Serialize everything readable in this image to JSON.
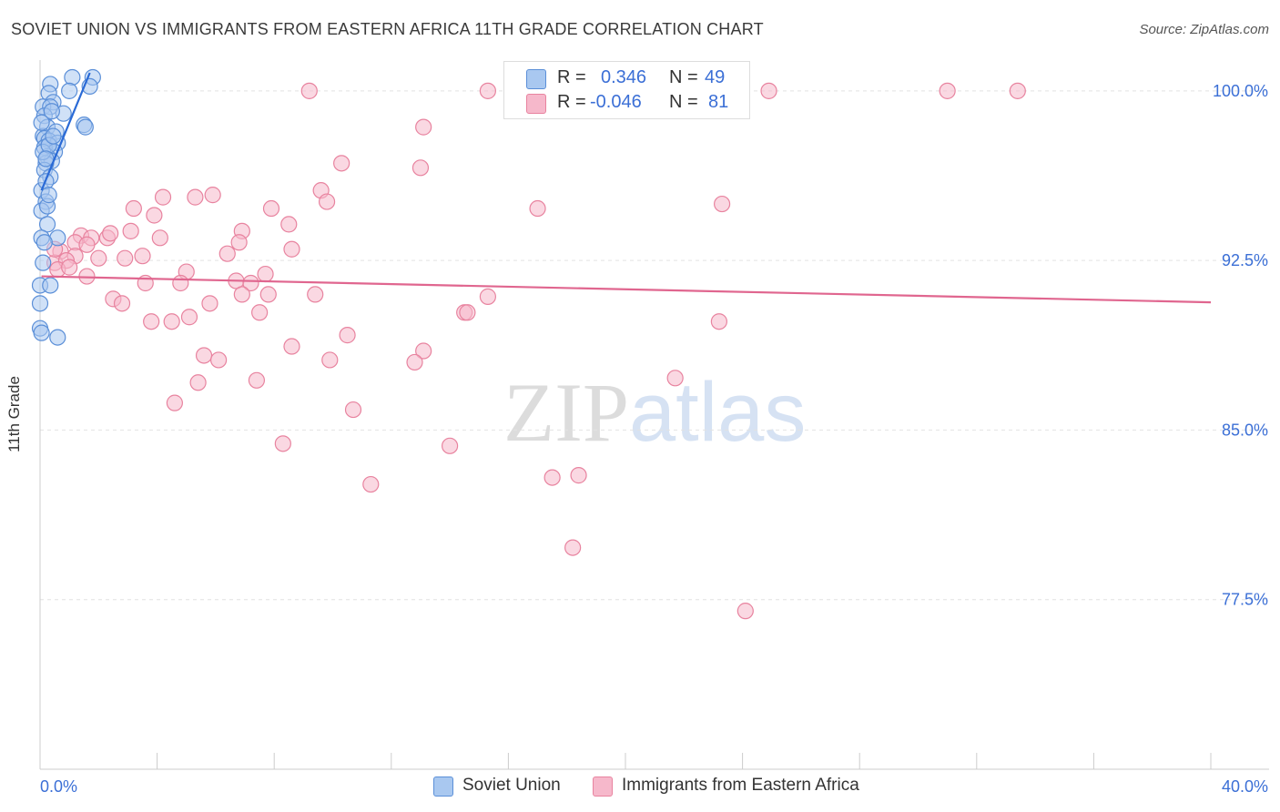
{
  "title": "SOVIET UNION VS IMMIGRANTS FROM EASTERN AFRICA 11TH GRADE CORRELATION CHART",
  "source": "Source: ZipAtlas.com",
  "watermark": {
    "zip": "ZIP",
    "atlas": "atlas"
  },
  "legend": {
    "rows": [
      {
        "r_label": "R = ",
        "r_value": "0.346",
        "n_label": "N = ",
        "n_value": "49"
      },
      {
        "r_label": "R = ",
        "r_value": "-0.046",
        "n_label": "N = ",
        "n_value": "81"
      }
    ]
  },
  "bottom_legend": [
    "Soviet Union",
    "Immigrants from Eastern Africa"
  ],
  "colors": {
    "blue_fill": "#a9c8f0",
    "blue_stroke": "#5b8fd8",
    "blue_line": "#2a6ad6",
    "pink_fill": "#f6b8cb",
    "pink_stroke": "#e8839f",
    "pink_line": "#e0668f",
    "tick_label": "#3b6fd6",
    "grid": "#e2e2e2"
  },
  "chart_data": {
    "type": "scatter",
    "title": "SOVIET UNION VS IMMIGRANTS FROM EASTERN AFRICA 11TH GRADE CORRELATION CHART",
    "xlabel": "",
    "ylabel": "11th Grade",
    "xlim": [
      0,
      40
    ],
    "ylim": [
      70,
      100.8
    ],
    "x_tick_labels": [
      "0.0%",
      "40.0%"
    ],
    "y_ticks": [
      77.5,
      85.0,
      92.5,
      100.0
    ],
    "y_tick_labels": [
      "77.5%",
      "85.0%",
      "92.5%",
      "100.0%"
    ],
    "grid": true,
    "legend_position": "top-center",
    "series": [
      {
        "name": "Soviet Union",
        "r": 0.346,
        "n": 49,
        "trend": {
          "x": [
            0.05,
            1.7
          ],
          "y": [
            95.6,
            100.8
          ]
        },
        "points": [
          [
            1.1,
            100.6
          ],
          [
            1.8,
            100.6
          ],
          [
            0.35,
            100.3
          ],
          [
            1.7,
            100.2
          ],
          [
            1.0,
            100.0
          ],
          [
            0.3,
            99.9
          ],
          [
            0.45,
            99.5
          ],
          [
            0.1,
            99.3
          ],
          [
            0.35,
            99.3
          ],
          [
            0.8,
            99.0
          ],
          [
            0.15,
            98.9
          ],
          [
            1.5,
            98.5
          ],
          [
            1.55,
            98.4
          ],
          [
            0.25,
            98.4
          ],
          [
            0.55,
            98.2
          ],
          [
            0.1,
            98.0
          ],
          [
            0.15,
            97.9
          ],
          [
            0.3,
            97.8
          ],
          [
            0.6,
            97.7
          ],
          [
            0.15,
            97.5
          ],
          [
            0.5,
            97.3
          ],
          [
            0.25,
            97.1
          ],
          [
            0.4,
            96.9
          ],
          [
            0.2,
            96.8
          ],
          [
            0.15,
            96.5
          ],
          [
            0.35,
            96.2
          ],
          [
            0.05,
            95.6
          ],
          [
            0.2,
            95.1
          ],
          [
            0.05,
            94.7
          ],
          [
            0.25,
            94.1
          ],
          [
            0.05,
            93.5
          ],
          [
            0.6,
            93.5
          ],
          [
            0.15,
            93.3
          ],
          [
            0.0,
            91.4
          ],
          [
            0.35,
            91.4
          ],
          [
            0.0,
            90.6
          ],
          [
            0.0,
            89.5
          ],
          [
            0.05,
            89.3
          ],
          [
            0.6,
            89.1
          ],
          [
            0.1,
            97.3
          ],
          [
            0.3,
            97.6
          ],
          [
            0.2,
            96.0
          ],
          [
            0.05,
            98.6
          ],
          [
            0.4,
            99.1
          ],
          [
            0.25,
            94.9
          ],
          [
            0.1,
            92.4
          ],
          [
            0.2,
            97.0
          ],
          [
            0.45,
            98.0
          ],
          [
            0.3,
            95.4
          ]
        ]
      },
      {
        "name": "Immigrants from Eastern Africa",
        "r": -0.046,
        "n": 81,
        "trend": {
          "x": [
            0.05,
            40.0
          ],
          "y": [
            91.8,
            90.65
          ]
        },
        "points": [
          [
            9.2,
            100.0
          ],
          [
            15.3,
            100.0
          ],
          [
            24.9,
            100.0
          ],
          [
            31.0,
            100.0
          ],
          [
            33.4,
            100.0
          ],
          [
            13.1,
            98.4
          ],
          [
            10.3,
            96.8
          ],
          [
            13.0,
            96.6
          ],
          [
            9.6,
            95.6
          ],
          [
            4.2,
            95.3
          ],
          [
            5.3,
            95.3
          ],
          [
            5.9,
            95.4
          ],
          [
            9.8,
            95.1
          ],
          [
            7.9,
            94.8
          ],
          [
            17.0,
            94.8
          ],
          [
            23.3,
            95.0
          ],
          [
            3.2,
            94.8
          ],
          [
            3.9,
            94.5
          ],
          [
            8.5,
            94.1
          ],
          [
            3.1,
            93.8
          ],
          [
            1.4,
            93.6
          ],
          [
            1.75,
            93.5
          ],
          [
            2.3,
            93.5
          ],
          [
            2.4,
            93.7
          ],
          [
            4.1,
            93.5
          ],
          [
            6.9,
            93.8
          ],
          [
            1.2,
            93.3
          ],
          [
            1.6,
            93.2
          ],
          [
            0.7,
            92.9
          ],
          [
            6.8,
            93.3
          ],
          [
            8.6,
            93.0
          ],
          [
            6.4,
            92.8
          ],
          [
            1.2,
            92.7
          ],
          [
            0.5,
            92.4
          ],
          [
            0.9,
            92.5
          ],
          [
            2.0,
            92.6
          ],
          [
            2.9,
            92.6
          ],
          [
            3.5,
            92.7
          ],
          [
            0.6,
            92.1
          ],
          [
            1.6,
            91.8
          ],
          [
            5.0,
            92.0
          ],
          [
            7.7,
            91.9
          ],
          [
            6.7,
            91.6
          ],
          [
            7.2,
            91.5
          ],
          [
            3.6,
            91.5
          ],
          [
            4.8,
            91.5
          ],
          [
            7.8,
            91.0
          ],
          [
            9.4,
            91.0
          ],
          [
            6.9,
            91.0
          ],
          [
            15.3,
            90.9
          ],
          [
            2.5,
            90.8
          ],
          [
            2.8,
            90.6
          ],
          [
            5.8,
            90.6
          ],
          [
            14.5,
            90.2
          ],
          [
            14.6,
            90.2
          ],
          [
            7.5,
            90.2
          ],
          [
            5.1,
            90.0
          ],
          [
            3.8,
            89.8
          ],
          [
            4.5,
            89.8
          ],
          [
            23.2,
            89.8
          ],
          [
            10.5,
            89.2
          ],
          [
            8.6,
            88.7
          ],
          [
            13.1,
            88.5
          ],
          [
            5.6,
            88.3
          ],
          [
            6.1,
            88.1
          ],
          [
            9.9,
            88.1
          ],
          [
            12.8,
            88.0
          ],
          [
            21.7,
            87.3
          ],
          [
            5.4,
            87.1
          ],
          [
            7.4,
            87.2
          ],
          [
            4.6,
            86.2
          ],
          [
            10.7,
            85.9
          ],
          [
            8.3,
            84.4
          ],
          [
            14.0,
            84.3
          ],
          [
            11.3,
            82.6
          ],
          [
            17.5,
            82.9
          ],
          [
            18.4,
            83.0
          ],
          [
            18.2,
            79.8
          ],
          [
            24.1,
            77.0
          ],
          [
            0.5,
            93.0
          ],
          [
            1.0,
            92.2
          ]
        ]
      }
    ]
  }
}
